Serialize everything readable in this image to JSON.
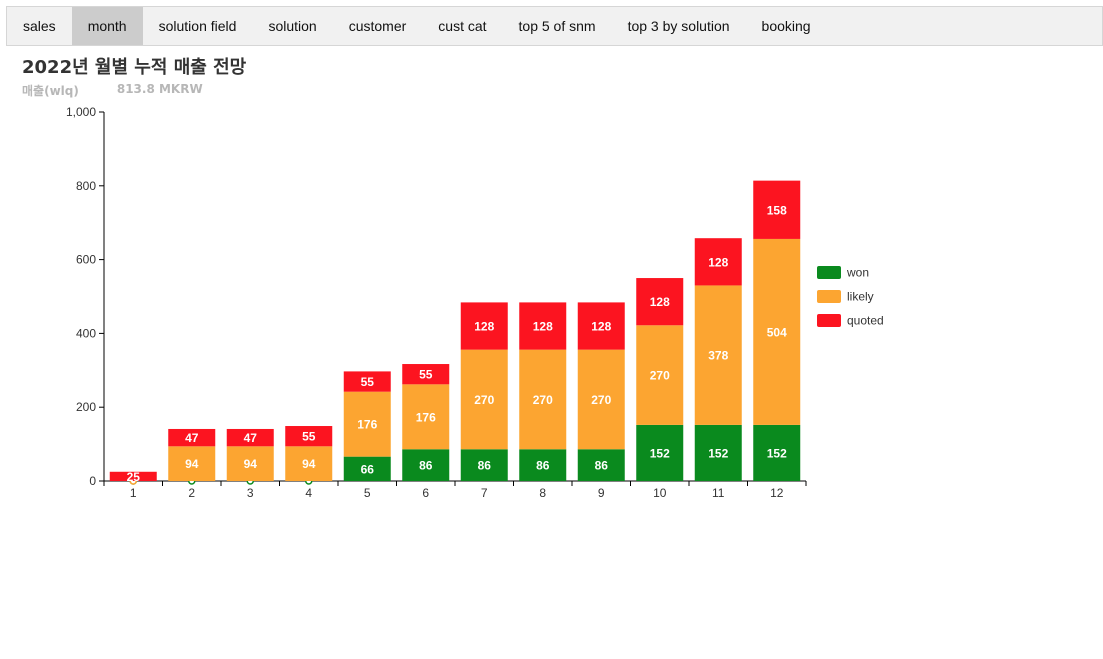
{
  "tabs": [
    {
      "label": "sales",
      "active": false
    },
    {
      "label": "month",
      "active": true
    },
    {
      "label": "solution field",
      "active": false
    },
    {
      "label": "solution",
      "active": false
    },
    {
      "label": "customer",
      "active": false
    },
    {
      "label": "cust cat",
      "active": false
    },
    {
      "label": "top 5 of snm",
      "active": false
    },
    {
      "label": "top 3 by solution",
      "active": false
    },
    {
      "label": "booking",
      "active": false
    }
  ],
  "header": {
    "title": "2022년 월별 누적 매출 전망",
    "metric_label": "매출(wlq)",
    "metric_value": "813.8 MKRW"
  },
  "chart_data": {
    "type": "bar",
    "stacked": true,
    "categories": [
      "1",
      "2",
      "3",
      "4",
      "5",
      "6",
      "7",
      "8",
      "9",
      "10",
      "11",
      "12"
    ],
    "series": [
      {
        "name": "won",
        "color": "#0a8a1e",
        "values": [
          0,
          0,
          0,
          0,
          66,
          86,
          86,
          86,
          86,
          152,
          152,
          152
        ]
      },
      {
        "name": "likely",
        "color": "#fca531",
        "values": [
          0,
          94,
          94,
          94,
          176,
          176,
          270,
          270,
          270,
          270,
          378,
          504
        ]
      },
      {
        "name": "quoted",
        "color": "#fc1420",
        "values": [
          25,
          47,
          47,
          55,
          55,
          55,
          128,
          128,
          128,
          128,
          128,
          158
        ]
      }
    ],
    "ylim": [
      0,
      1000
    ],
    "yticks": [
      0,
      200,
      400,
      600,
      800,
      1000
    ],
    "ytick_labels": [
      "0",
      "200",
      "400",
      "600",
      "800",
      "1,000"
    ],
    "legend_position": "right",
    "grid": false
  }
}
